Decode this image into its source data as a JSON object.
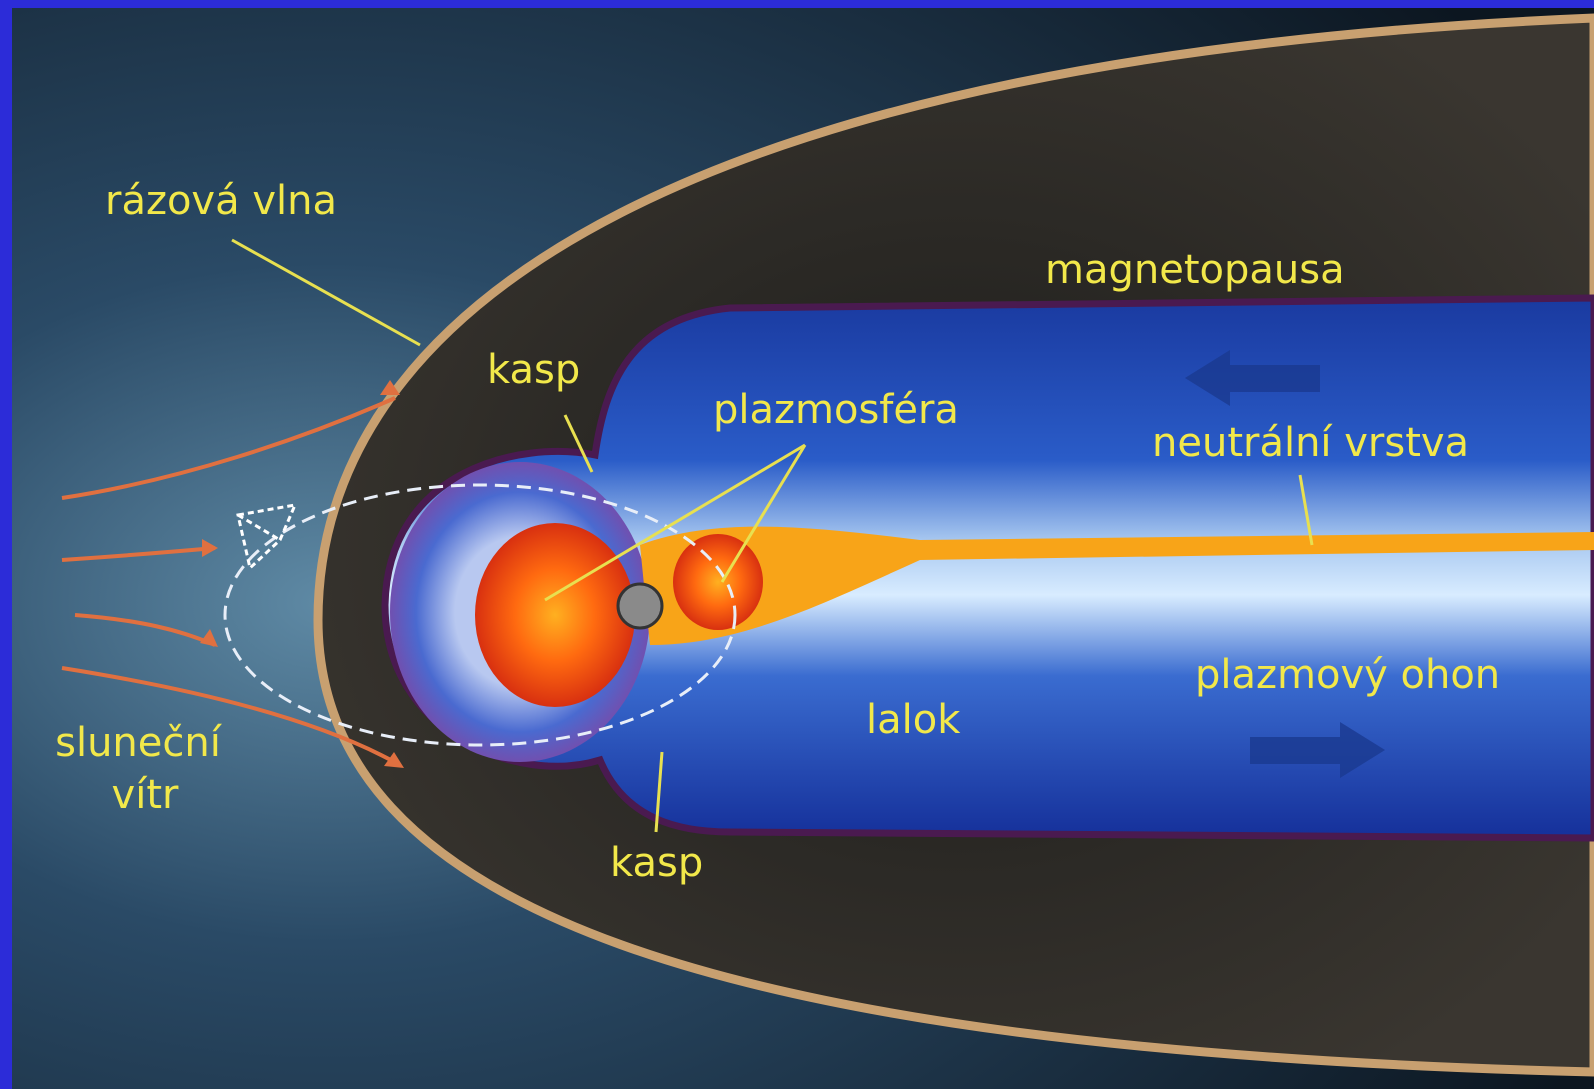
{
  "labels": {
    "bow_shock": "rázová vlna",
    "magnetopause": "magnetopausa",
    "cusp_top": "kasp",
    "plasmasphere": "plazmosféra",
    "neutral_sheet": "neutrální vrstva",
    "plasma_tail": "plazmový ohon",
    "lobe": "lalok",
    "cusp_bottom": "kasp",
    "solar_wind": [
      "sluneční",
      "vítr"
    ]
  }
}
